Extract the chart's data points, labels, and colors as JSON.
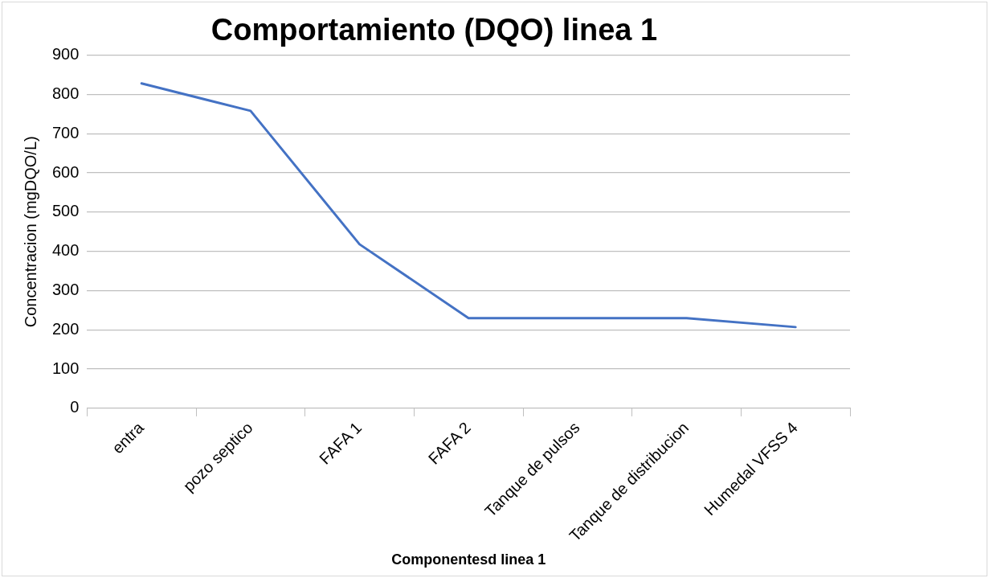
{
  "chart_data": {
    "type": "line",
    "title": "Comportamiento (DQO) linea 1",
    "xlabel": "Componentesd linea 1",
    "ylabel": "Concentracion (mgDQO/L)",
    "categories": [
      "entra",
      "pozo septico",
      "FAFA 1",
      "FAFA 2",
      "Tanque de pulsos",
      "Tanque de distribucion",
      "Humedal VFSS 4"
    ],
    "series": [
      {
        "color": "#4472c4",
        "values": [
          828,
          758,
          418,
          230,
          230,
          230,
          207
        ]
      }
    ],
    "ylim": [
      0,
      900
    ],
    "yticks": [
      0,
      100,
      200,
      300,
      400,
      500,
      600,
      700,
      800,
      900
    ],
    "grid": "y",
    "legend": false,
    "marker": "none",
    "line_style": "solid"
  }
}
